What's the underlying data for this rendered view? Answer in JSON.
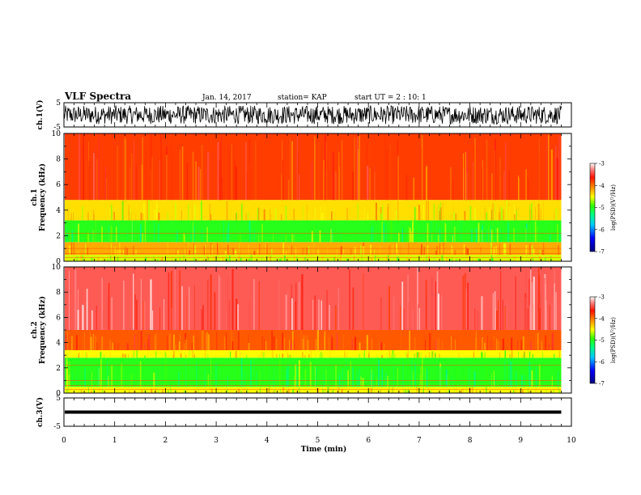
{
  "header": {
    "title": "VLF Spectra",
    "date": "Jan. 14, 2017",
    "station": "station= KAP",
    "start_ut": "start UT =   2 : 10: 1"
  },
  "chart_data": [
    {
      "type": "line",
      "id": "ch1-waveform",
      "ylabel": "ch.1(V)",
      "ylim": [
        -5,
        5
      ],
      "yticks": [
        "5",
        "-5"
      ],
      "xlim": [
        0,
        10
      ],
      "data_end_min": 9.8,
      "description_values": {
        "amplitude_range": [
          -4,
          4
        ]
      },
      "color": "#000000"
    },
    {
      "type": "heatmap",
      "id": "ch1-spectrogram",
      "ylabel": "ch.1\nFrequency (kHz)",
      "ylim": [
        0,
        10
      ],
      "yticks": [
        "0",
        "2",
        "4",
        "6",
        "8",
        "10"
      ],
      "xlim": [
        0,
        10
      ],
      "data_end_min": 9.8,
      "bands_khz": [
        {
          "from": 0.0,
          "to": 0.5,
          "log_psd": -4.6
        },
        {
          "from": 0.5,
          "to": 1.5,
          "log_psd": -4.2
        },
        {
          "from": 1.5,
          "to": 3.2,
          "log_psd": -5.0
        },
        {
          "from": 3.2,
          "to": 4.8,
          "log_psd": -4.4
        },
        {
          "from": 4.8,
          "to": 10.0,
          "log_psd": -3.8
        }
      ],
      "colorbar": {
        "label": "log(PSD)(V²/Hz)",
        "range": [
          -7,
          -3
        ],
        "ticks": [
          "-3",
          "-4",
          "-5",
          "-6",
          "-7"
        ]
      }
    },
    {
      "type": "heatmap",
      "id": "ch2-spectrogram",
      "ylabel": "ch.2\nFrequency (kHz)",
      "ylim": [
        0,
        10
      ],
      "yticks": [
        "0",
        "2",
        "4",
        "6",
        "8",
        "10"
      ],
      "xlim": [
        0,
        10
      ],
      "data_end_min": 9.8,
      "bands_khz": [
        {
          "from": 0.0,
          "to": 0.5,
          "log_psd": -4.5
        },
        {
          "from": 0.5,
          "to": 2.8,
          "log_psd": -5.0
        },
        {
          "from": 2.8,
          "to": 3.4,
          "log_psd": -4.5
        },
        {
          "from": 3.4,
          "to": 5.0,
          "log_psd": -3.9
        },
        {
          "from": 5.0,
          "to": 10.0,
          "log_psd": -3.4
        }
      ],
      "colorbar": {
        "label": "log(PSD)(V²/Hz)",
        "range": [
          -7,
          -3
        ],
        "ticks": [
          "-3",
          "-4",
          "-5",
          "-6",
          "-7"
        ]
      }
    },
    {
      "type": "line",
      "id": "ch3-waveform",
      "ylabel": "ch.3(V)",
      "ylim": [
        -5,
        5
      ],
      "yticks": [
        "5",
        "-5"
      ],
      "xlim": [
        0,
        10
      ],
      "xlabel": "Time (min)",
      "xticks": [
        "0",
        "1",
        "2",
        "3",
        "4",
        "5",
        "6",
        "7",
        "8",
        "9",
        "10"
      ],
      "data_end_min": 9.8,
      "level_v": 0.0,
      "color": "#000000"
    }
  ]
}
